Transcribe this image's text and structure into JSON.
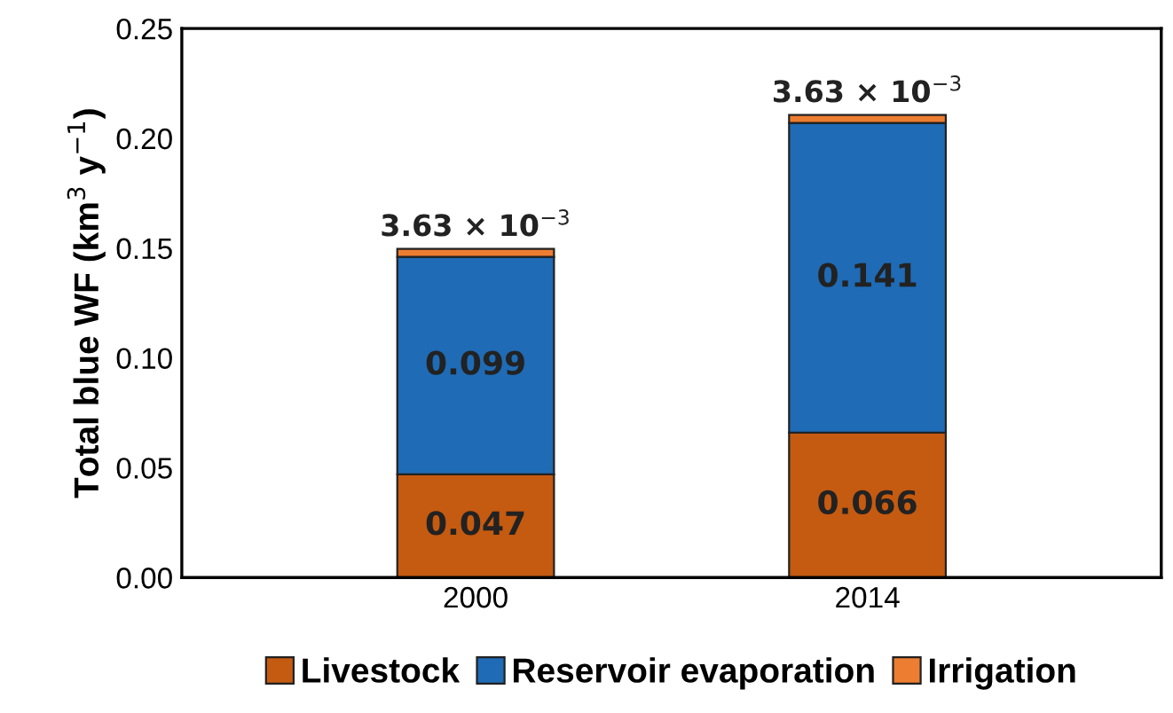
{
  "chart_data": {
    "type": "bar",
    "stacked": true,
    "ylabel": "Total blue WF (km$^{3}$ y$^{−1}$)",
    "categories": [
      "2000",
      "2014"
    ],
    "series": [
      {
        "name": "Livestock",
        "color": "#c55a11",
        "values": [
          0.047,
          0.066
        ],
        "value_labels": [
          "0.047",
          "0.066"
        ]
      },
      {
        "name": "Reservoir evaporation",
        "color": "#1f6bb5",
        "values": [
          0.099,
          0.141
        ],
        "value_labels": [
          "0.099",
          "0.141"
        ]
      },
      {
        "name": "Irrigation",
        "color": "#ed7d31",
        "values": [
          0.00363,
          0.00363
        ],
        "value_labels": [
          "3.63 × 10$^{−3}$",
          "3.63 × 10$^{−3}$"
        ]
      }
    ],
    "ylim": [
      0,
      0.25
    ],
    "yticks": [
      {
        "value": 0,
        "label": "0.00"
      },
      {
        "value": 0.05,
        "label": "0.05"
      },
      {
        "value": 0.1,
        "label": "0.10"
      },
      {
        "value": 0.15,
        "label": "0.15"
      },
      {
        "value": 0.2,
        "label": "0.20"
      },
      {
        "value": 0.25,
        "label": "0.25"
      }
    ],
    "legend": "bottom",
    "grid": false
  }
}
